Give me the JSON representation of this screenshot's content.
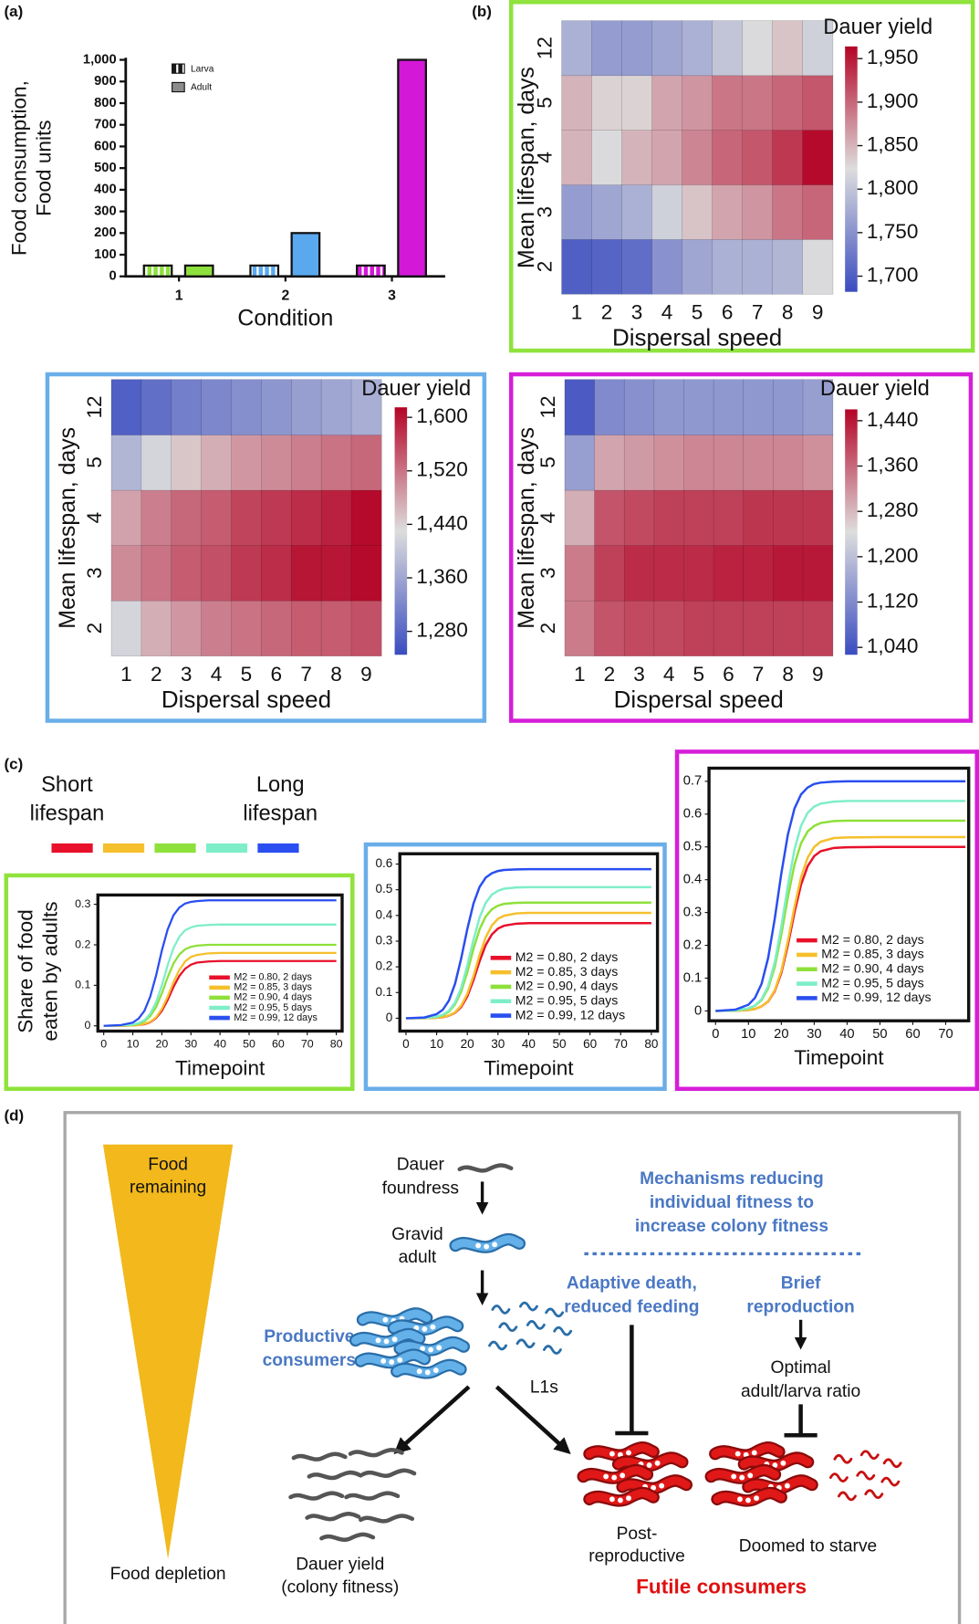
{
  "panel_labels": [
    "(a)",
    "(b)",
    "(c)",
    "(d)"
  ],
  "chart_data": [
    {
      "type": "bar",
      "ylabel": [
        "Food consumption,",
        "Food units"
      ],
      "xlabel": "Condition",
      "categories": [
        "1",
        "2",
        "3"
      ],
      "series": [
        {
          "name": "Larva",
          "color": "#1a1a1a",
          "pattern": "vertical-stripes",
          "values": [
            50,
            50,
            50
          ]
        },
        {
          "name": "Adult",
          "color": "#8c8c8c",
          "pattern": "solid",
          "values": [
            50,
            200,
            1000
          ]
        }
      ],
      "category_colors": [
        "#8ee03c",
        "#5aa9ef",
        "#d418d8"
      ],
      "ylim": [
        0,
        1000
      ],
      "yticks": [
        0,
        100,
        200,
        300,
        400,
        500,
        600,
        700,
        800,
        900,
        {
          "value": 1000,
          "label": "1,000"
        }
      ]
    },
    {
      "type": "heatmap",
      "frame_color": "#8fe33c",
      "colorbar_label": "Dauer yield",
      "xlabel": "Dispersal speed",
      "ylabel": "Mean lifespan, days",
      "categories": [
        "1",
        "2",
        "3",
        "4",
        "5",
        "6",
        "7",
        "8",
        "9"
      ],
      "rows": [
        "2",
        "3",
        "4",
        "5",
        "12"
      ],
      "values": [
        [
          1700,
          1705,
          1715,
          1750,
          1770,
          1780,
          1780,
          1785,
          1820
        ],
        [
          1760,
          1770,
          1780,
          1810,
          1840,
          1860,
          1870,
          1890,
          1900
        ],
        [
          1850,
          1820,
          1850,
          1860,
          1880,
          1900,
          1910,
          1930,
          1960
        ],
        [
          1850,
          1830,
          1830,
          1860,
          1870,
          1890,
          1890,
          1900,
          1910
        ],
        [
          1780,
          1760,
          1760,
          1770,
          1780,
          1800,
          1820,
          1840,
          1810
        ]
      ],
      "clim": [
        1682,
        1964
      ],
      "colormap": [
        "#3a4cc0",
        "#dddddd",
        "#b40426"
      ],
      "cticks": [
        {
          "value": 1700,
          "label": "1,700"
        },
        {
          "value": 1750,
          "label": "1,750"
        },
        {
          "value": 1800,
          "label": "1,800"
        },
        {
          "value": 1850,
          "label": "1,850"
        },
        {
          "value": 1900,
          "label": "1,900"
        },
        {
          "value": 1950,
          "label": "1,950"
        }
      ]
    },
    {
      "type": "heatmap",
      "frame_color": "#6aaee8",
      "colorbar_label": "Dauer yield",
      "xlabel": "Dispersal speed",
      "ylabel": "Mean lifespan, days",
      "categories": [
        "1",
        "2",
        "3",
        "4",
        "5",
        "6",
        "7",
        "8",
        "9"
      ],
      "rows": [
        "2",
        "3",
        "4",
        "5",
        "12"
      ],
      "values": [
        [
          1420,
          1470,
          1490,
          1510,
          1520,
          1530,
          1540,
          1540,
          1550
        ],
        [
          1500,
          1520,
          1540,
          1550,
          1570,
          1580,
          1600,
          1600,
          1610
        ],
        [
          1480,
          1510,
          1530,
          1540,
          1560,
          1570,
          1580,
          1590,
          1610
        ],
        [
          1380,
          1420,
          1450,
          1470,
          1490,
          1500,
          1510,
          1520,
          1530
        ],
        [
          1270,
          1290,
          1310,
          1320,
          1330,
          1340,
          1350,
          1360,
          1370
        ]
      ],
      "clim": [
        1245,
        1615
      ],
      "colormap": [
        "#3a4cc0",
        "#dddddd",
        "#b40426"
      ],
      "cticks": [
        {
          "value": 1280,
          "label": "1,280"
        },
        {
          "value": 1360,
          "label": "1,360"
        },
        {
          "value": 1440,
          "label": "1,440"
        },
        {
          "value": 1520,
          "label": "1,520"
        },
        {
          "value": 1600,
          "label": "1,600"
        }
      ]
    },
    {
      "type": "heatmap",
      "frame_color": "#d61ed8",
      "colorbar_label": "Dauer yield",
      "xlabel": "Dispersal speed",
      "ylabel": "Mean lifespan, days",
      "categories": [
        "1",
        "2",
        "3",
        "4",
        "5",
        "6",
        "7",
        "8",
        "9"
      ],
      "rows": [
        "2",
        "3",
        "4",
        "5",
        "12"
      ],
      "values": [
        [
          1340,
          1380,
          1390,
          1390,
          1400,
          1400,
          1400,
          1400,
          1400
        ],
        [
          1340,
          1400,
          1420,
          1420,
          1420,
          1430,
          1430,
          1440,
          1440
        ],
        [
          1290,
          1380,
          1390,
          1400,
          1400,
          1400,
          1410,
          1410,
          1410
        ],
        [
          1150,
          1300,
          1310,
          1320,
          1330,
          1330,
          1330,
          1330,
          1320
        ],
        [
          1050,
          1120,
          1130,
          1140,
          1140,
          1140,
          1140,
          1140,
          1150
        ]
      ],
      "clim": [
        1027,
        1460
      ],
      "colormap": [
        "#3a4cc0",
        "#dddddd",
        "#b40426"
      ],
      "cticks": [
        {
          "value": 1040,
          "label": "1,040"
        },
        {
          "value": 1120,
          "label": "1,120"
        },
        {
          "value": 1200,
          "label": "1,200"
        },
        {
          "value": 1280,
          "label": "1,280"
        },
        {
          "value": 1360,
          "label": "1,360"
        },
        {
          "value": 1440,
          "label": "1,440"
        }
      ]
    },
    {
      "type": "line",
      "frame_color": "#8fe33c",
      "ylabel": [
        "Share of food",
        "eaten by adults"
      ],
      "xlabel": "Timepoint",
      "x": [
        0,
        6,
        10,
        12,
        14,
        16,
        18,
        20,
        22,
        24,
        26,
        28,
        30,
        32,
        36,
        40,
        50,
        60,
        70,
        80
      ],
      "series": [
        {
          "name": "M2 = 0.80, 2 days",
          "color": "#e8102a",
          "values": [
            0,
            0,
            0.001,
            0.002,
            0.004,
            0.009,
            0.019,
            0.037,
            0.064,
            0.096,
            0.123,
            0.141,
            0.151,
            0.156,
            0.159,
            0.16,
            0.16,
            0.16,
            0.16,
            0.16
          ]
        },
        {
          "name": "M2 = 0.85, 3 days",
          "color": "#f5c02c",
          "values": [
            0,
            0,
            0.001,
            0.002,
            0.005,
            0.01,
            0.021,
            0.042,
            0.072,
            0.108,
            0.138,
            0.159,
            0.17,
            0.175,
            0.179,
            0.18,
            0.18,
            0.18,
            0.18,
            0.18
          ]
        },
        {
          "name": "M2 = 0.90, 4 days",
          "color": "#8ee03a",
          "values": [
            0,
            0.001,
            0.002,
            0.005,
            0.011,
            0.024,
            0.046,
            0.08,
            0.12,
            0.154,
            0.176,
            0.189,
            0.195,
            0.198,
            0.2,
            0.2,
            0.2,
            0.2,
            0.2,
            0.2
          ]
        },
        {
          "name": "M2 = 0.95, 5 days",
          "color": "#7eeec8",
          "values": [
            0,
            0.001,
            0.003,
            0.007,
            0.014,
            0.03,
            0.058,
            0.1,
            0.15,
            0.192,
            0.22,
            0.236,
            0.243,
            0.247,
            0.249,
            0.25,
            0.25,
            0.25,
            0.25,
            0.25
          ]
        },
        {
          "name": "M2 = 0.99, 12 days",
          "color": "#2a4ef0",
          "values": [
            0,
            0.002,
            0.008,
            0.018,
            0.037,
            0.072,
            0.124,
            0.186,
            0.238,
            0.273,
            0.292,
            0.302,
            0.306,
            0.308,
            0.31,
            0.31,
            0.31,
            0.31,
            0.31,
            0.31
          ]
        }
      ],
      "xlim": [
        -2,
        82
      ],
      "xticks": [
        0,
        10,
        20,
        30,
        40,
        50,
        60,
        70,
        80
      ],
      "ylim": [
        -0.013,
        0.323
      ],
      "yticks": [
        0,
        0.1,
        0.2,
        0.3
      ]
    },
    {
      "type": "line",
      "frame_color": "#6aaee8",
      "xlabel": "Timepoint",
      "x": [
        0,
        6,
        10,
        12,
        14,
        16,
        18,
        20,
        22,
        24,
        26,
        28,
        30,
        32,
        36,
        40,
        50,
        60,
        70,
        80
      ],
      "series": [
        {
          "name": "M2 = 0.80, 2 days",
          "color": "#e8102a",
          "values": [
            0,
            0,
            0.002,
            0.004,
            0.01,
            0.021,
            0.044,
            0.085,
            0.148,
            0.222,
            0.285,
            0.326,
            0.349,
            0.36,
            0.368,
            0.37,
            0.37,
            0.37,
            0.37,
            0.37
          ]
        },
        {
          "name": "M2 = 0.85, 3 days",
          "color": "#f5c02c",
          "values": [
            0,
            0,
            0.002,
            0.005,
            0.011,
            0.023,
            0.049,
            0.095,
            0.164,
            0.246,
            0.315,
            0.361,
            0.387,
            0.399,
            0.408,
            0.41,
            0.41,
            0.41,
            0.41,
            0.41
          ]
        },
        {
          "name": "M2 = 0.90, 4 days",
          "color": "#8ee03a",
          "values": [
            0,
            0.001,
            0.005,
            0.012,
            0.026,
            0.054,
            0.104,
            0.18,
            0.27,
            0.346,
            0.396,
            0.424,
            0.438,
            0.445,
            0.449,
            0.45,
            0.45,
            0.45,
            0.45,
            0.45
          ]
        },
        {
          "name": "M2 = 0.95, 5 days",
          "color": "#7eeec8",
          "values": [
            0,
            0.001,
            0.006,
            0.014,
            0.029,
            0.061,
            0.118,
            0.205,
            0.305,
            0.392,
            0.449,
            0.481,
            0.496,
            0.504,
            0.509,
            0.51,
            0.51,
            0.51,
            0.51,
            0.51
          ]
        },
        {
          "name": "M2 = 0.99, 12 days",
          "color": "#2a4ef0",
          "values": [
            0,
            0.003,
            0.016,
            0.033,
            0.069,
            0.134,
            0.233,
            0.347,
            0.446,
            0.511,
            0.547,
            0.564,
            0.573,
            0.577,
            0.579,
            0.58,
            0.58,
            0.58,
            0.58,
            0.58
          ]
        }
      ],
      "xlim": [
        -2,
        82
      ],
      "xticks": [
        0,
        10,
        20,
        30,
        40,
        50,
        60,
        70,
        80
      ],
      "ylim": [
        -0.05,
        0.64
      ],
      "yticks": [
        0,
        0.1,
        0.2,
        0.3,
        0.4,
        0.5,
        0.6
      ]
    },
    {
      "type": "line",
      "frame_color": "#d61ed8",
      "xlabel": "Timepoint",
      "x": [
        0,
        6,
        10,
        12,
        14,
        16,
        18,
        20,
        22,
        24,
        26,
        28,
        30,
        32,
        36,
        40,
        50,
        60,
        70,
        76
      ],
      "series": [
        {
          "name": "M2 = 0.80, 2 days",
          "color": "#e8102a",
          "values": [
            0,
            0.001,
            0.003,
            0.006,
            0.014,
            0.029,
            0.06,
            0.116,
            0.201,
            0.3,
            0.385,
            0.441,
            0.472,
            0.487,
            0.497,
            0.499,
            0.5,
            0.5,
            0.5,
            0.5
          ]
        },
        {
          "name": "M2 = 0.85, 3 days",
          "color": "#f5c02c",
          "values": [
            0,
            0.001,
            0.003,
            0.006,
            0.014,
            0.03,
            0.063,
            0.122,
            0.213,
            0.317,
            0.408,
            0.467,
            0.5,
            0.516,
            0.527,
            0.529,
            0.53,
            0.53,
            0.53,
            0.53
          ]
        },
        {
          "name": "M2 = 0.90, 4 days",
          "color": "#8ee03a",
          "values": [
            0,
            0.001,
            0.007,
            0.016,
            0.033,
            0.069,
            0.134,
            0.233,
            0.347,
            0.446,
            0.511,
            0.547,
            0.564,
            0.573,
            0.579,
            0.58,
            0.58,
            0.58,
            0.58,
            0.58
          ]
        },
        {
          "name": "M2 = 0.95, 5 days",
          "color": "#7eeec8",
          "values": [
            0,
            0.002,
            0.008,
            0.017,
            0.036,
            0.076,
            0.148,
            0.257,
            0.383,
            0.492,
            0.564,
            0.604,
            0.623,
            0.632,
            0.638,
            0.64,
            0.64,
            0.64,
            0.64,
            0.64
          ]
        },
        {
          "name": "M2 = 0.99, 12 days",
          "color": "#2a4ef0",
          "values": [
            0,
            0.004,
            0.019,
            0.04,
            0.083,
            0.162,
            0.281,
            0.419,
            0.538,
            0.617,
            0.66,
            0.681,
            0.692,
            0.696,
            0.699,
            0.7,
            0.7,
            0.7,
            0.7,
            0.7
          ]
        }
      ],
      "xlim": [
        -2,
        77
      ],
      "xticks": [
        0,
        10,
        20,
        30,
        40,
        50,
        60,
        70
      ],
      "ylim": [
        -0.03,
        0.74
      ],
      "yticks": [
        0,
        0.1,
        0.2,
        0.3,
        0.4,
        0.5,
        0.6,
        0.7
      ]
    }
  ],
  "lifespan_legend": {
    "short": [
      "Short",
      "lifespan"
    ],
    "long": [
      "Long",
      "lifespan"
    ],
    "colors": [
      "#e8102a",
      "#f5c02c",
      "#8ee03a",
      "#7eeec8",
      "#2a4ef0"
    ]
  },
  "diagram": {
    "food_remaining": [
      "Food",
      "remaining"
    ],
    "food_depletion": "Food depletion",
    "dauer_foundress": [
      "Dauer",
      "foundress"
    ],
    "gravid_adult": [
      "Gravid",
      "adult"
    ],
    "productive_consumers": [
      "Productive",
      "consumers"
    ],
    "l1s": "L1s",
    "mechanisms": [
      "Mechanisms reducing",
      "individual fitness to",
      "increase colony fitness"
    ],
    "adaptive_death": [
      "Adaptive death,",
      "reduced feeding"
    ],
    "brief_reproduction": [
      "Brief",
      "reproduction"
    ],
    "optimal_ratio": [
      "Optimal",
      "adult/larva ratio"
    ],
    "dauer_yield": [
      "Dauer yield",
      "(colony fitness)"
    ],
    "post_reproductive": [
      "Post-",
      "reproductive"
    ],
    "doomed": "Doomed to starve",
    "futile": "Futile consumers"
  }
}
